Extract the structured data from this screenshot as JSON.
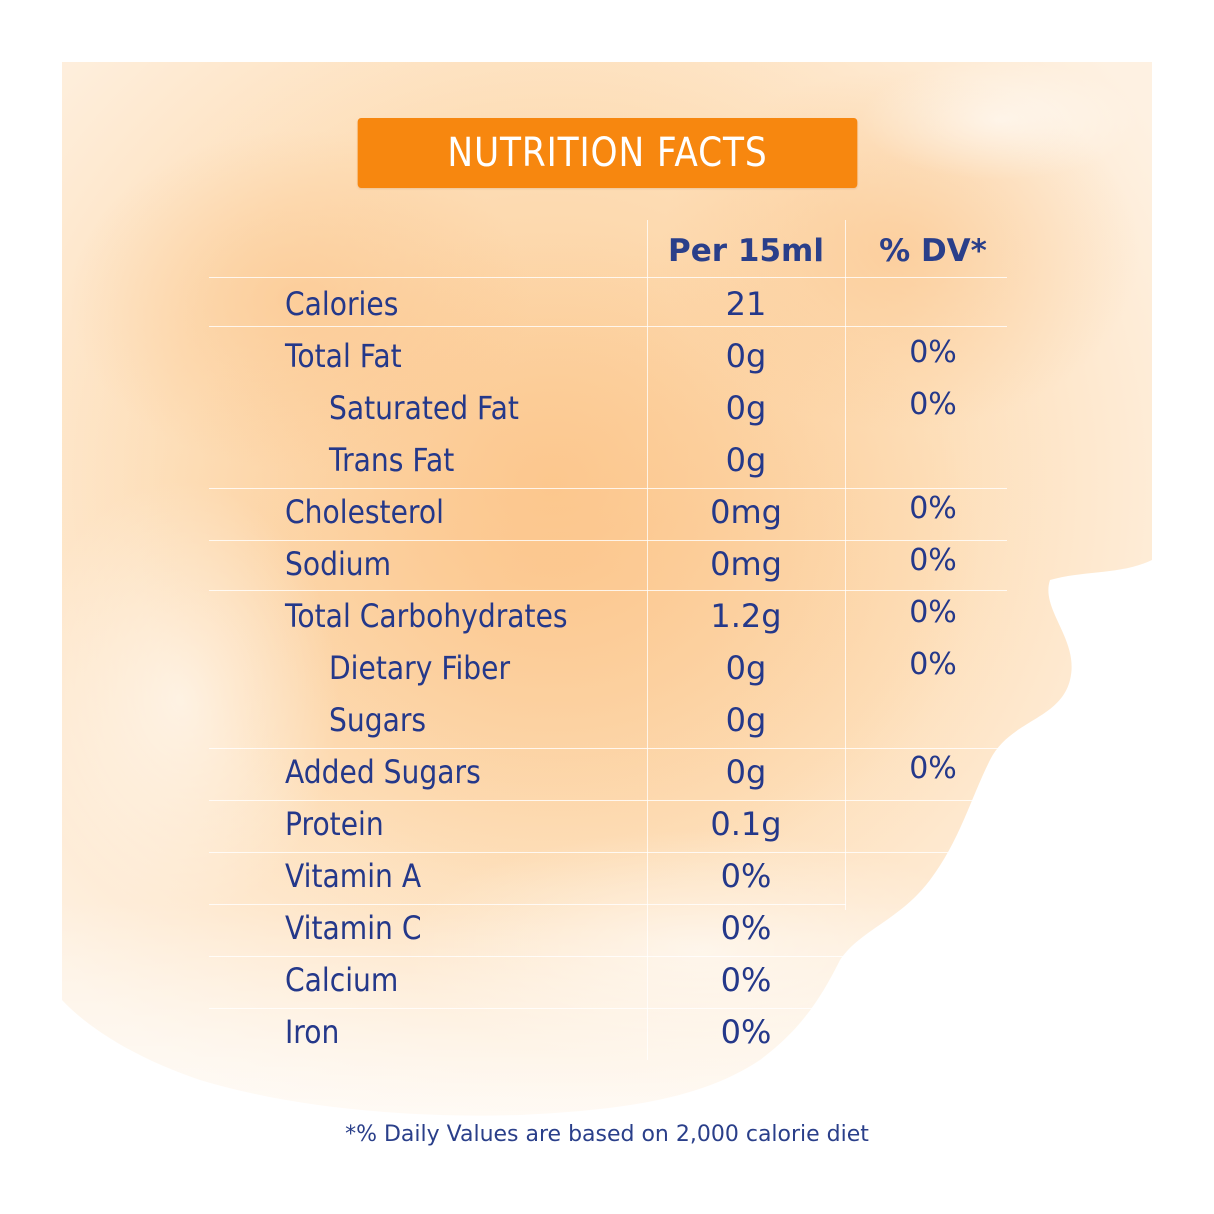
{
  "title": "NUTRITION FACTS",
  "columns": {
    "amount": "Per 15ml",
    "dv": "% DV*"
  },
  "rows": [
    {
      "label": "Calories",
      "amount": "21",
      "dv": "",
      "indent": false
    },
    {
      "label": "Total Fat",
      "amount": "0g",
      "dv": "0%",
      "indent": false
    },
    {
      "label": "Saturated Fat",
      "amount": "0g",
      "dv": "0%",
      "indent": true
    },
    {
      "label": "Trans Fat",
      "amount": "0g",
      "dv": "",
      "indent": true
    },
    {
      "label": "Cholesterol",
      "amount": "0mg",
      "dv": "0%",
      "indent": false
    },
    {
      "label": "Sodium",
      "amount": "0mg",
      "dv": "0%",
      "indent": false
    },
    {
      "label": "Total Carbohydrates",
      "amount": "1.2g",
      "dv": "0%",
      "indent": false
    },
    {
      "label": "Dietary Fiber",
      "amount": "0g",
      "dv": "0%",
      "indent": true
    },
    {
      "label": "Sugars",
      "amount": "0g",
      "dv": "",
      "indent": true
    },
    {
      "label": "Added Sugars",
      "amount": "0g",
      "dv": "0%",
      "indent": false
    },
    {
      "label": "Protein",
      "amount": "0.1g",
      "dv": "",
      "indent": false
    },
    {
      "label": "Vitamin A",
      "amount": "0%",
      "dv": "",
      "indent": false
    },
    {
      "label": "Vitamin C",
      "amount": "0%",
      "dv": "",
      "indent": false
    },
    {
      "label": "Calcium",
      "amount": "0%",
      "dv": "",
      "indent": false
    },
    {
      "label": "Iron",
      "amount": "0%",
      "dv": "",
      "indent": false
    }
  ],
  "footnote": "*% Daily Values are based on 2,000 calorie diet",
  "colors": {
    "banner": "#f7870f",
    "text": "#24388a",
    "wash": "#fbd7a8"
  }
}
